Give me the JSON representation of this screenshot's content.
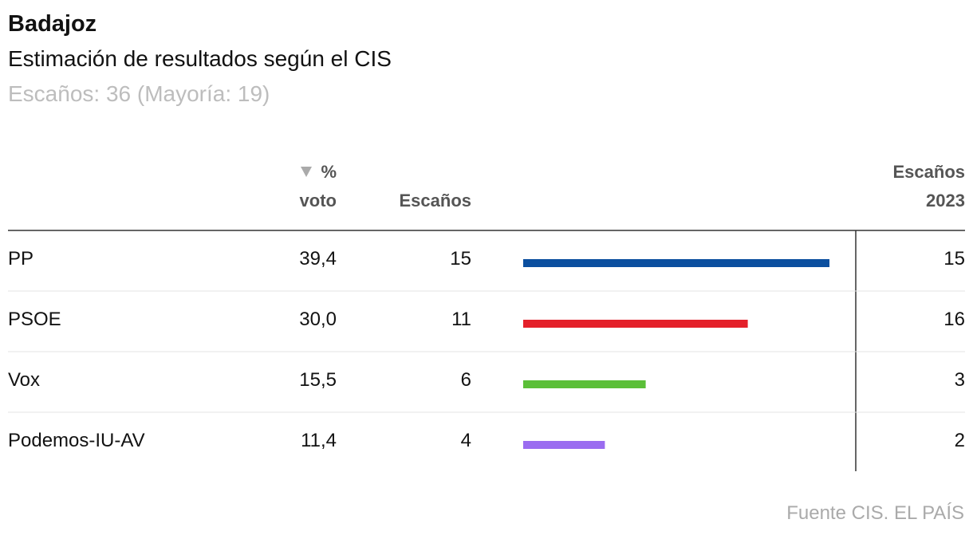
{
  "header": {
    "title": "Badajoz",
    "subtitle": "Estimación de resultados según el CIS",
    "note": "Escaños: 36 (Mayoría: 19)"
  },
  "table": {
    "columns": [
      "% voto",
      "Escaños",
      "Escaños 2023"
    ],
    "rows": [
      {
        "party": "PP",
        "vote": "39,4",
        "seats": 15,
        "seats_2023": 15,
        "color": "#0b4f9f"
      },
      {
        "party": "PSOE",
        "vote": "30,0",
        "seats": 11,
        "seats_2023": 16,
        "color": "#e4202a"
      },
      {
        "party": "Vox",
        "vote": "15,5",
        "seats": 6,
        "seats_2023": 3,
        "color": "#5bbf38"
      },
      {
        "party": "Podemos-IU-AV",
        "vote": "11,4",
        "seats": 4,
        "seats_2023": 2,
        "color": "#9a6cf0"
      }
    ]
  },
  "footer": {
    "source": "Fuente CIS. EL PAÍS"
  }
}
